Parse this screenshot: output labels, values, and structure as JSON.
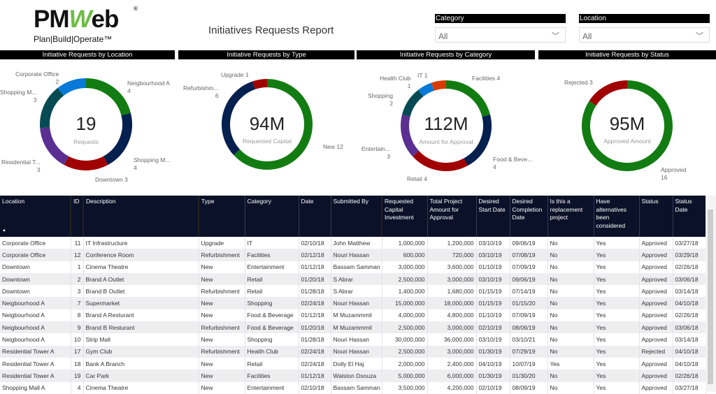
{
  "logo": {
    "text_pm": "PM",
    "text_w": "W",
    "text_eb": "eb",
    "tagline": "Plan|Build|Operate™",
    "reg": "®"
  },
  "header": {
    "title": "Initiatives Requests Report"
  },
  "slicers": [
    {
      "label": "Category",
      "value": "All"
    },
    {
      "label": "Location",
      "value": "All"
    }
  ],
  "charts": [
    {
      "title": "Initiative Requests by Location",
      "center_value": "19",
      "center_label": "Requests",
      "type": "donut",
      "segments": [
        {
          "label": "Neigbourhood A",
          "value": 4,
          "color": "#127c12"
        },
        {
          "label": "Shopping M...",
          "value": 4,
          "color": "#04204f"
        },
        {
          "label": "Downtown",
          "value": 3,
          "color": "#a10000"
        },
        {
          "label": "Residential T...",
          "value": 3,
          "color": "#5b2e91"
        },
        {
          "label": "Shopping M...",
          "value": 3,
          "color": "#064b54"
        },
        {
          "label": "Corporate Office",
          "value": 2,
          "color": "#0779d8"
        }
      ]
    },
    {
      "title": "Initiative Requests by Type",
      "center_value": "94M",
      "center_label": "Requested Capital",
      "type": "donut",
      "segments": [
        {
          "label": "New",
          "value": 12,
          "color": "#127c12"
        },
        {
          "label": "Refurbishm...",
          "value": 6,
          "color": "#04204f"
        },
        {
          "label": "Upgrade",
          "value": 1,
          "color": "#a10000"
        }
      ]
    },
    {
      "title": "Initiative Requests by Category",
      "center_value": "112M",
      "center_label": "Amount for Approval",
      "type": "donut",
      "segments": [
        {
          "label": "Facilities",
          "value": 4,
          "color": "#127c12"
        },
        {
          "label": "Food & Beve...",
          "value": 4,
          "color": "#04204f"
        },
        {
          "label": "Retail",
          "value": 4,
          "color": "#a10000"
        },
        {
          "label": "Entertain...",
          "value": 3,
          "color": "#5b2e91"
        },
        {
          "label": "Shopping",
          "value": 2,
          "color": "#064b54"
        },
        {
          "label": "Health Club",
          "value": 1,
          "color": "#0779d8"
        },
        {
          "label": "IT",
          "value": 1,
          "color": "#d83b01"
        }
      ]
    },
    {
      "title": "Initiative Requests by Status",
      "center_value": "95M",
      "center_label": "Approved Amount",
      "type": "donut",
      "segments": [
        {
          "label": "Approved",
          "value": 16,
          "color": "#127c12"
        },
        {
          "label": "Rejected",
          "value": 3,
          "color": "#a10000"
        }
      ]
    }
  ],
  "table": {
    "sort_indicator": "▲",
    "columns": [
      "Location",
      "ID",
      "Description",
      "Type",
      "Category",
      "Date",
      "Submitted By",
      "Requested Capital Investment",
      "Total Project Amount for Approval",
      "Desired Start Date",
      "Desired Completion Date",
      "Is this a replacement project",
      "Have alternatives been considered",
      "Status",
      "Status Date"
    ],
    "rows": [
      [
        "Corporate Office",
        "11",
        "IT Infrastructure",
        "Upgrade",
        "IT",
        "02/10/18",
        "John Matthew",
        "1,000,000",
        "1,200,000",
        "03/10/19",
        "09/06/19",
        "No",
        "Yes",
        "Approved",
        "03/27/18"
      ],
      [
        "Corporate Office",
        "12",
        "Conference Room",
        "Refurbishment",
        "Facilities",
        "02/12/18",
        "Nouri Hassan",
        "600,000",
        "720,000",
        "03/10/19",
        "07/08/19",
        "No",
        "Yes",
        "Approved",
        "03/29/18"
      ],
      [
        "Downtown",
        "1",
        "Cinema Theatre",
        "New",
        "Entertainment",
        "01/12/18",
        "Bassam Samman",
        "3,000,000",
        "3,600,000",
        "01/10/19",
        "07/09/19",
        "No",
        "Yes",
        "Approved",
        "02/26/18"
      ],
      [
        "Downtown",
        "2",
        "Brand A Outlet",
        "New",
        "Retail",
        "01/20/18",
        "S Abrar",
        "2,500,000",
        "3,000,000",
        "03/10/19",
        "09/06/19",
        "No",
        "Yes",
        "Approved",
        "03/06/18"
      ],
      [
        "Downtown",
        "3",
        "Brand B Outlet",
        "Refurbishment",
        "Retail",
        "01/28/18",
        "S Abrar",
        "1,400,000",
        "1,680,000",
        "01/15/19",
        "07/14/19",
        "No",
        "Yes",
        "Approved",
        "03/14/18"
      ],
      [
        "Neigbourhood A",
        "7",
        "Supermarket",
        "New",
        "Shopping",
        "02/24/18",
        "Nouri Hassan",
        "15,000,000",
        "18,000,000",
        "01/15/19",
        "01/15/20",
        "No",
        "Yes",
        "Approved",
        "04/10/18"
      ],
      [
        "Neigbourhood A",
        "8",
        "Brand A Resturant",
        "New",
        "Food & Beverage",
        "01/12/18",
        "M Muzammmil",
        "4,000,000",
        "4,800,000",
        "01/10/19",
        "07/09/19",
        "No",
        "Yes",
        "Approved",
        "02/26/18"
      ],
      [
        "Neigbourhood A",
        "9",
        "Brand B Resturant",
        "Refurbishment",
        "Food & Beverage",
        "01/20/18",
        "M Muzammmil",
        "2,500,000",
        "3,000,000",
        "02/10/19",
        "08/09/19",
        "No",
        "Yes",
        "Approved",
        "03/06/18"
      ],
      [
        "Neigbourhood A",
        "10",
        "Strip Mall",
        "New",
        "Shopping",
        "01/28/18",
        "Nouri Hassan",
        "30,000,000",
        "36,000,000",
        "03/10/19",
        "03/10/21",
        "No",
        "Yes",
        "Approved",
        "03/14/18"
      ],
      [
        "Residential Tower A",
        "17",
        "Gym Club",
        "Refurbishment",
        "Health Club",
        "02/24/18",
        "Nouri Hassan",
        "2,500,000",
        "3,000,000",
        "01/30/19",
        "07/29/19",
        "No",
        "Yes",
        "Rejected",
        "04/10/18"
      ],
      [
        "Residential Tower A",
        "18",
        "Bank A Branch",
        "New",
        "Retail",
        "02/24/18",
        "Dolly El Haj",
        "2,000,000",
        "2,400,000",
        "04/10/19",
        "10/07/19",
        "Yes",
        "Yes",
        "Approved",
        "04/10/18"
      ],
      [
        "Residential Tower A",
        "19",
        "Car Park",
        "New",
        "Facilities",
        "01/12/18",
        "Walston Dsouza",
        "5,000,000",
        "6,000,000",
        "01/30/19",
        "01/30/20",
        "No",
        "Yes",
        "Approved",
        "02/26/18"
      ],
      [
        "Shopping Mall A",
        "4",
        "Cinema Theatre",
        "New",
        "Entertainment",
        "02/10/18",
        "Bassam Samman",
        "3,500,000",
        "4,200,000",
        "02/10/19",
        "08/09/19",
        "No",
        "Yes",
        "Approved",
        "03/27/18"
      ]
    ]
  }
}
